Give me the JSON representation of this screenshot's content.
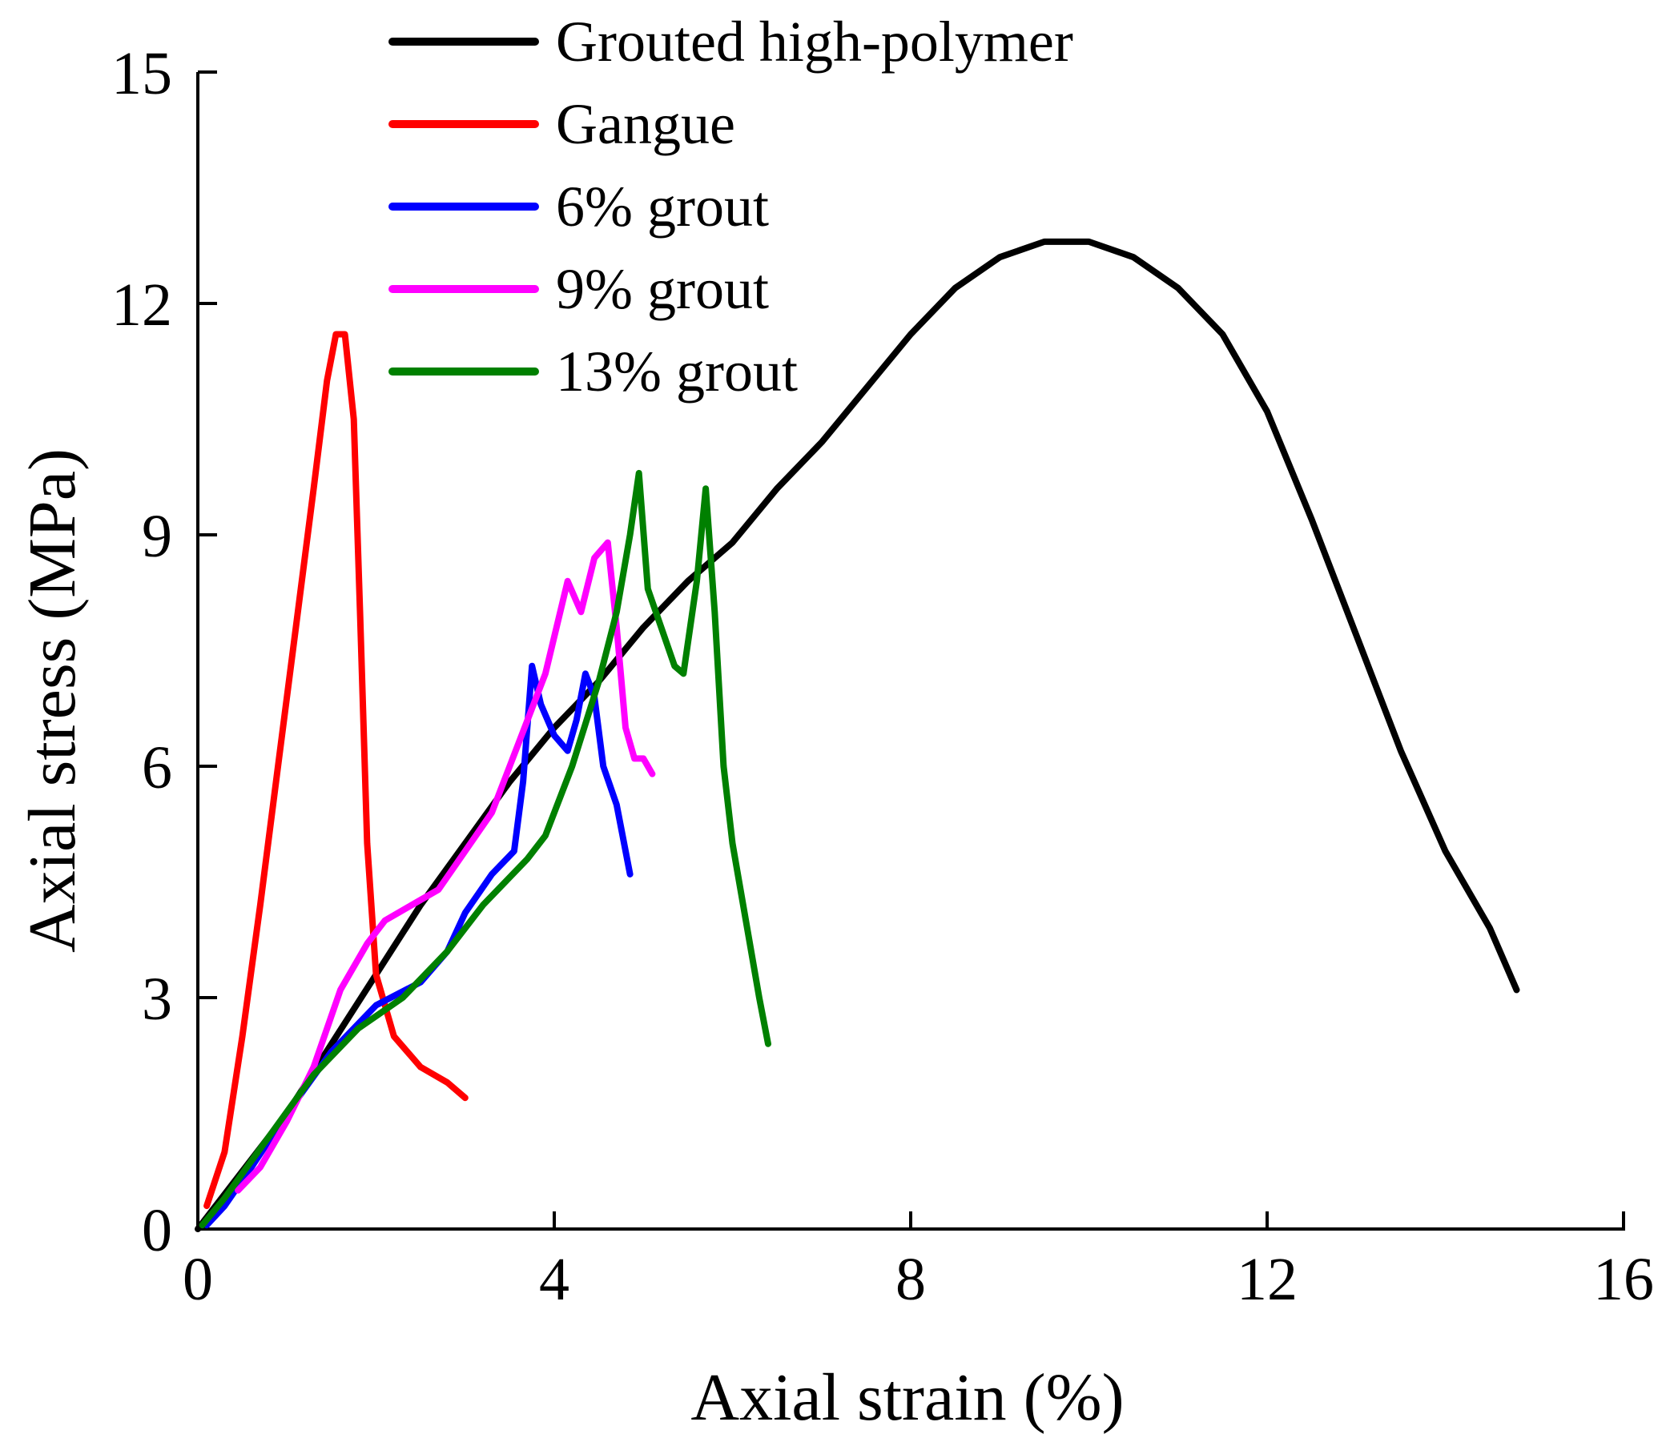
{
  "chart_data": {
    "type": "line",
    "title": "",
    "xlabel": "Axial strain (%)",
    "ylabel": "Axial stress (MPa)",
    "xlim": [
      0,
      16
    ],
    "ylim": [
      0,
      15
    ],
    "xticks": [
      0,
      4,
      8,
      12,
      16
    ],
    "yticks": [
      0,
      3,
      6,
      9,
      12,
      15
    ],
    "xtick_labels": [
      "0",
      "4",
      "8",
      "12",
      "16"
    ],
    "ytick_labels": [
      "0",
      "3",
      "6",
      "9",
      "12",
      "15"
    ],
    "grid": false,
    "legend_position": "top-center",
    "series": [
      {
        "name": "Grouted high-polymer",
        "color": "#000000",
        "points": [
          [
            0,
            0
          ],
          [
            0.5,
            0.75
          ],
          [
            1,
            1.5
          ],
          [
            1.5,
            2.4
          ],
          [
            2,
            3.3
          ],
          [
            2.5,
            4.2
          ],
          [
            3,
            5.0
          ],
          [
            3.5,
            5.8
          ],
          [
            4,
            6.5
          ],
          [
            4.5,
            7.1
          ],
          [
            5,
            7.8
          ],
          [
            5.5,
            8.4
          ],
          [
            6,
            8.9
          ],
          [
            6.5,
            9.6
          ],
          [
            7,
            10.2
          ],
          [
            7.5,
            10.9
          ],
          [
            8,
            11.6
          ],
          [
            8.5,
            12.2
          ],
          [
            9,
            12.6
          ],
          [
            9.5,
            12.8
          ],
          [
            10,
            12.8
          ],
          [
            10.5,
            12.6
          ],
          [
            11,
            12.2
          ],
          [
            11.5,
            11.6
          ],
          [
            12,
            10.6
          ],
          [
            12.5,
            9.2
          ],
          [
            13,
            7.7
          ],
          [
            13.5,
            6.2
          ],
          [
            14,
            4.9
          ],
          [
            14.5,
            3.9
          ],
          [
            14.8,
            3.1
          ]
        ]
      },
      {
        "name": "Gangue",
        "color": "#ff0000",
        "points": [
          [
            0.1,
            0.3
          ],
          [
            0.3,
            1.0
          ],
          [
            0.5,
            2.5
          ],
          [
            0.7,
            4.2
          ],
          [
            0.9,
            6.0
          ],
          [
            1.1,
            7.8
          ],
          [
            1.3,
            9.6
          ],
          [
            1.45,
            11.0
          ],
          [
            1.55,
            11.6
          ],
          [
            1.65,
            11.6
          ],
          [
            1.75,
            10.5
          ],
          [
            1.82,
            8.0
          ],
          [
            1.9,
            5.0
          ],
          [
            2.0,
            3.3
          ],
          [
            2.2,
            2.5
          ],
          [
            2.5,
            2.1
          ],
          [
            2.8,
            1.9
          ],
          [
            3.0,
            1.7
          ]
        ]
      },
      {
        "name": "6% grout",
        "color": "#0000ff",
        "points": [
          [
            0.1,
            0.05
          ],
          [
            0.3,
            0.3
          ],
          [
            0.6,
            0.8
          ],
          [
            1,
            1.5
          ],
          [
            1.5,
            2.3
          ],
          [
            2,
            2.9
          ],
          [
            2.5,
            3.2
          ],
          [
            2.8,
            3.6
          ],
          [
            3,
            4.1
          ],
          [
            3.3,
            4.6
          ],
          [
            3.55,
            4.9
          ],
          [
            3.65,
            5.8
          ],
          [
            3.75,
            7.3
          ],
          [
            3.85,
            6.8
          ],
          [
            4.0,
            6.4
          ],
          [
            4.15,
            6.2
          ],
          [
            4.25,
            6.6
          ],
          [
            4.35,
            7.2
          ],
          [
            4.45,
            6.9
          ],
          [
            4.55,
            6.0
          ],
          [
            4.7,
            5.5
          ],
          [
            4.85,
            4.6
          ]
        ]
      },
      {
        "name": "9% grout",
        "color": "#ff00ff",
        "points": [
          [
            0.45,
            0.5
          ],
          [
            0.7,
            0.8
          ],
          [
            1,
            1.4
          ],
          [
            1.3,
            2.1
          ],
          [
            1.6,
            3.1
          ],
          [
            1.9,
            3.7
          ],
          [
            2.1,
            4.0
          ],
          [
            2.4,
            4.2
          ],
          [
            2.7,
            4.4
          ],
          [
            3,
            4.9
          ],
          [
            3.3,
            5.4
          ],
          [
            3.6,
            6.3
          ],
          [
            3.9,
            7.2
          ],
          [
            4.15,
            8.4
          ],
          [
            4.3,
            8.0
          ],
          [
            4.45,
            8.7
          ],
          [
            4.6,
            8.9
          ],
          [
            4.7,
            7.8
          ],
          [
            4.8,
            6.5
          ],
          [
            4.9,
            6.1
          ],
          [
            5.0,
            6.1
          ],
          [
            5.1,
            5.9
          ]
        ]
      },
      {
        "name": "13% grout",
        "color": "#008000",
        "points": [
          [
            0.05,
            0.05
          ],
          [
            0.3,
            0.4
          ],
          [
            0.8,
            1.2
          ],
          [
            1.3,
            2.0
          ],
          [
            1.8,
            2.6
          ],
          [
            2.3,
            3.0
          ],
          [
            2.8,
            3.6
          ],
          [
            3.2,
            4.2
          ],
          [
            3.7,
            4.8
          ],
          [
            3.9,
            5.1
          ],
          [
            4.2,
            6.0
          ],
          [
            4.5,
            7.1
          ],
          [
            4.7,
            8.0
          ],
          [
            4.85,
            9.0
          ],
          [
            4.95,
            9.8
          ],
          [
            5.05,
            8.3
          ],
          [
            5.2,
            7.8
          ],
          [
            5.35,
            7.3
          ],
          [
            5.45,
            7.2
          ],
          [
            5.6,
            8.4
          ],
          [
            5.7,
            9.6
          ],
          [
            5.8,
            8.0
          ],
          [
            5.9,
            6.0
          ],
          [
            6.0,
            5.0
          ],
          [
            6.15,
            4.0
          ],
          [
            6.3,
            3.0
          ],
          [
            6.4,
            2.4
          ]
        ]
      }
    ]
  }
}
